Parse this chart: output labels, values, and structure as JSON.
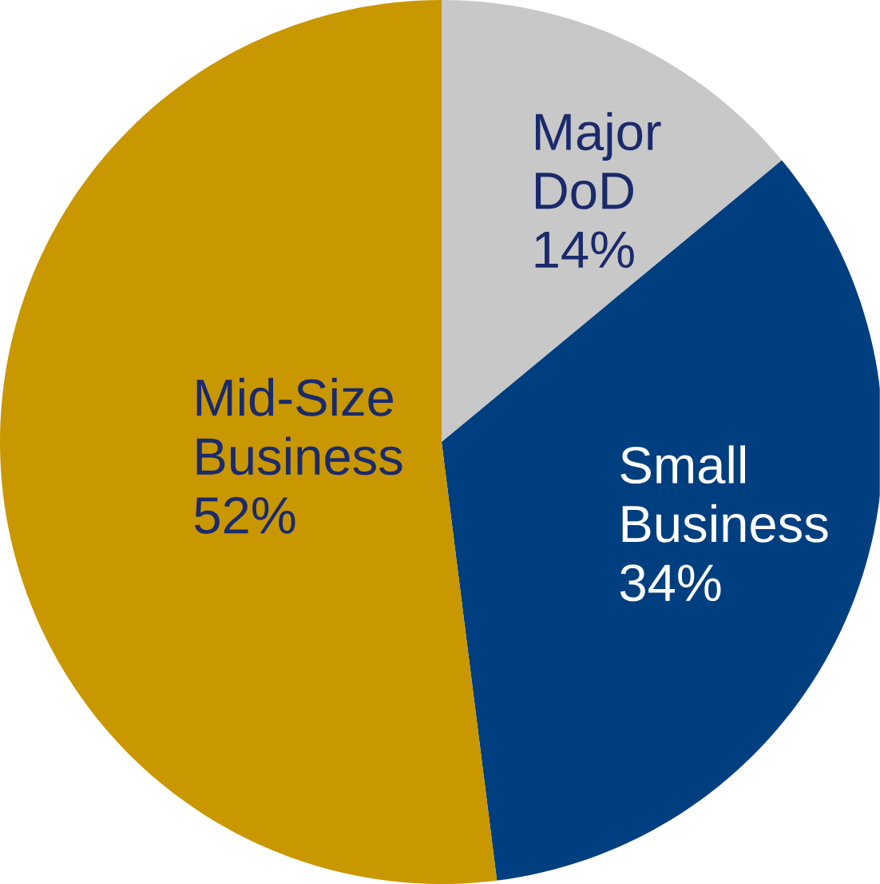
{
  "chart_data": {
    "type": "pie",
    "categories": [
      "Major DoD",
      "Small Business",
      "Mid-Size Business"
    ],
    "values": [
      14,
      34,
      52
    ],
    "value_labels": [
      "14%",
      "34%",
      "52%"
    ],
    "colors": [
      "#c8c8c8",
      "#003f7f",
      "#c99700"
    ]
  }
}
